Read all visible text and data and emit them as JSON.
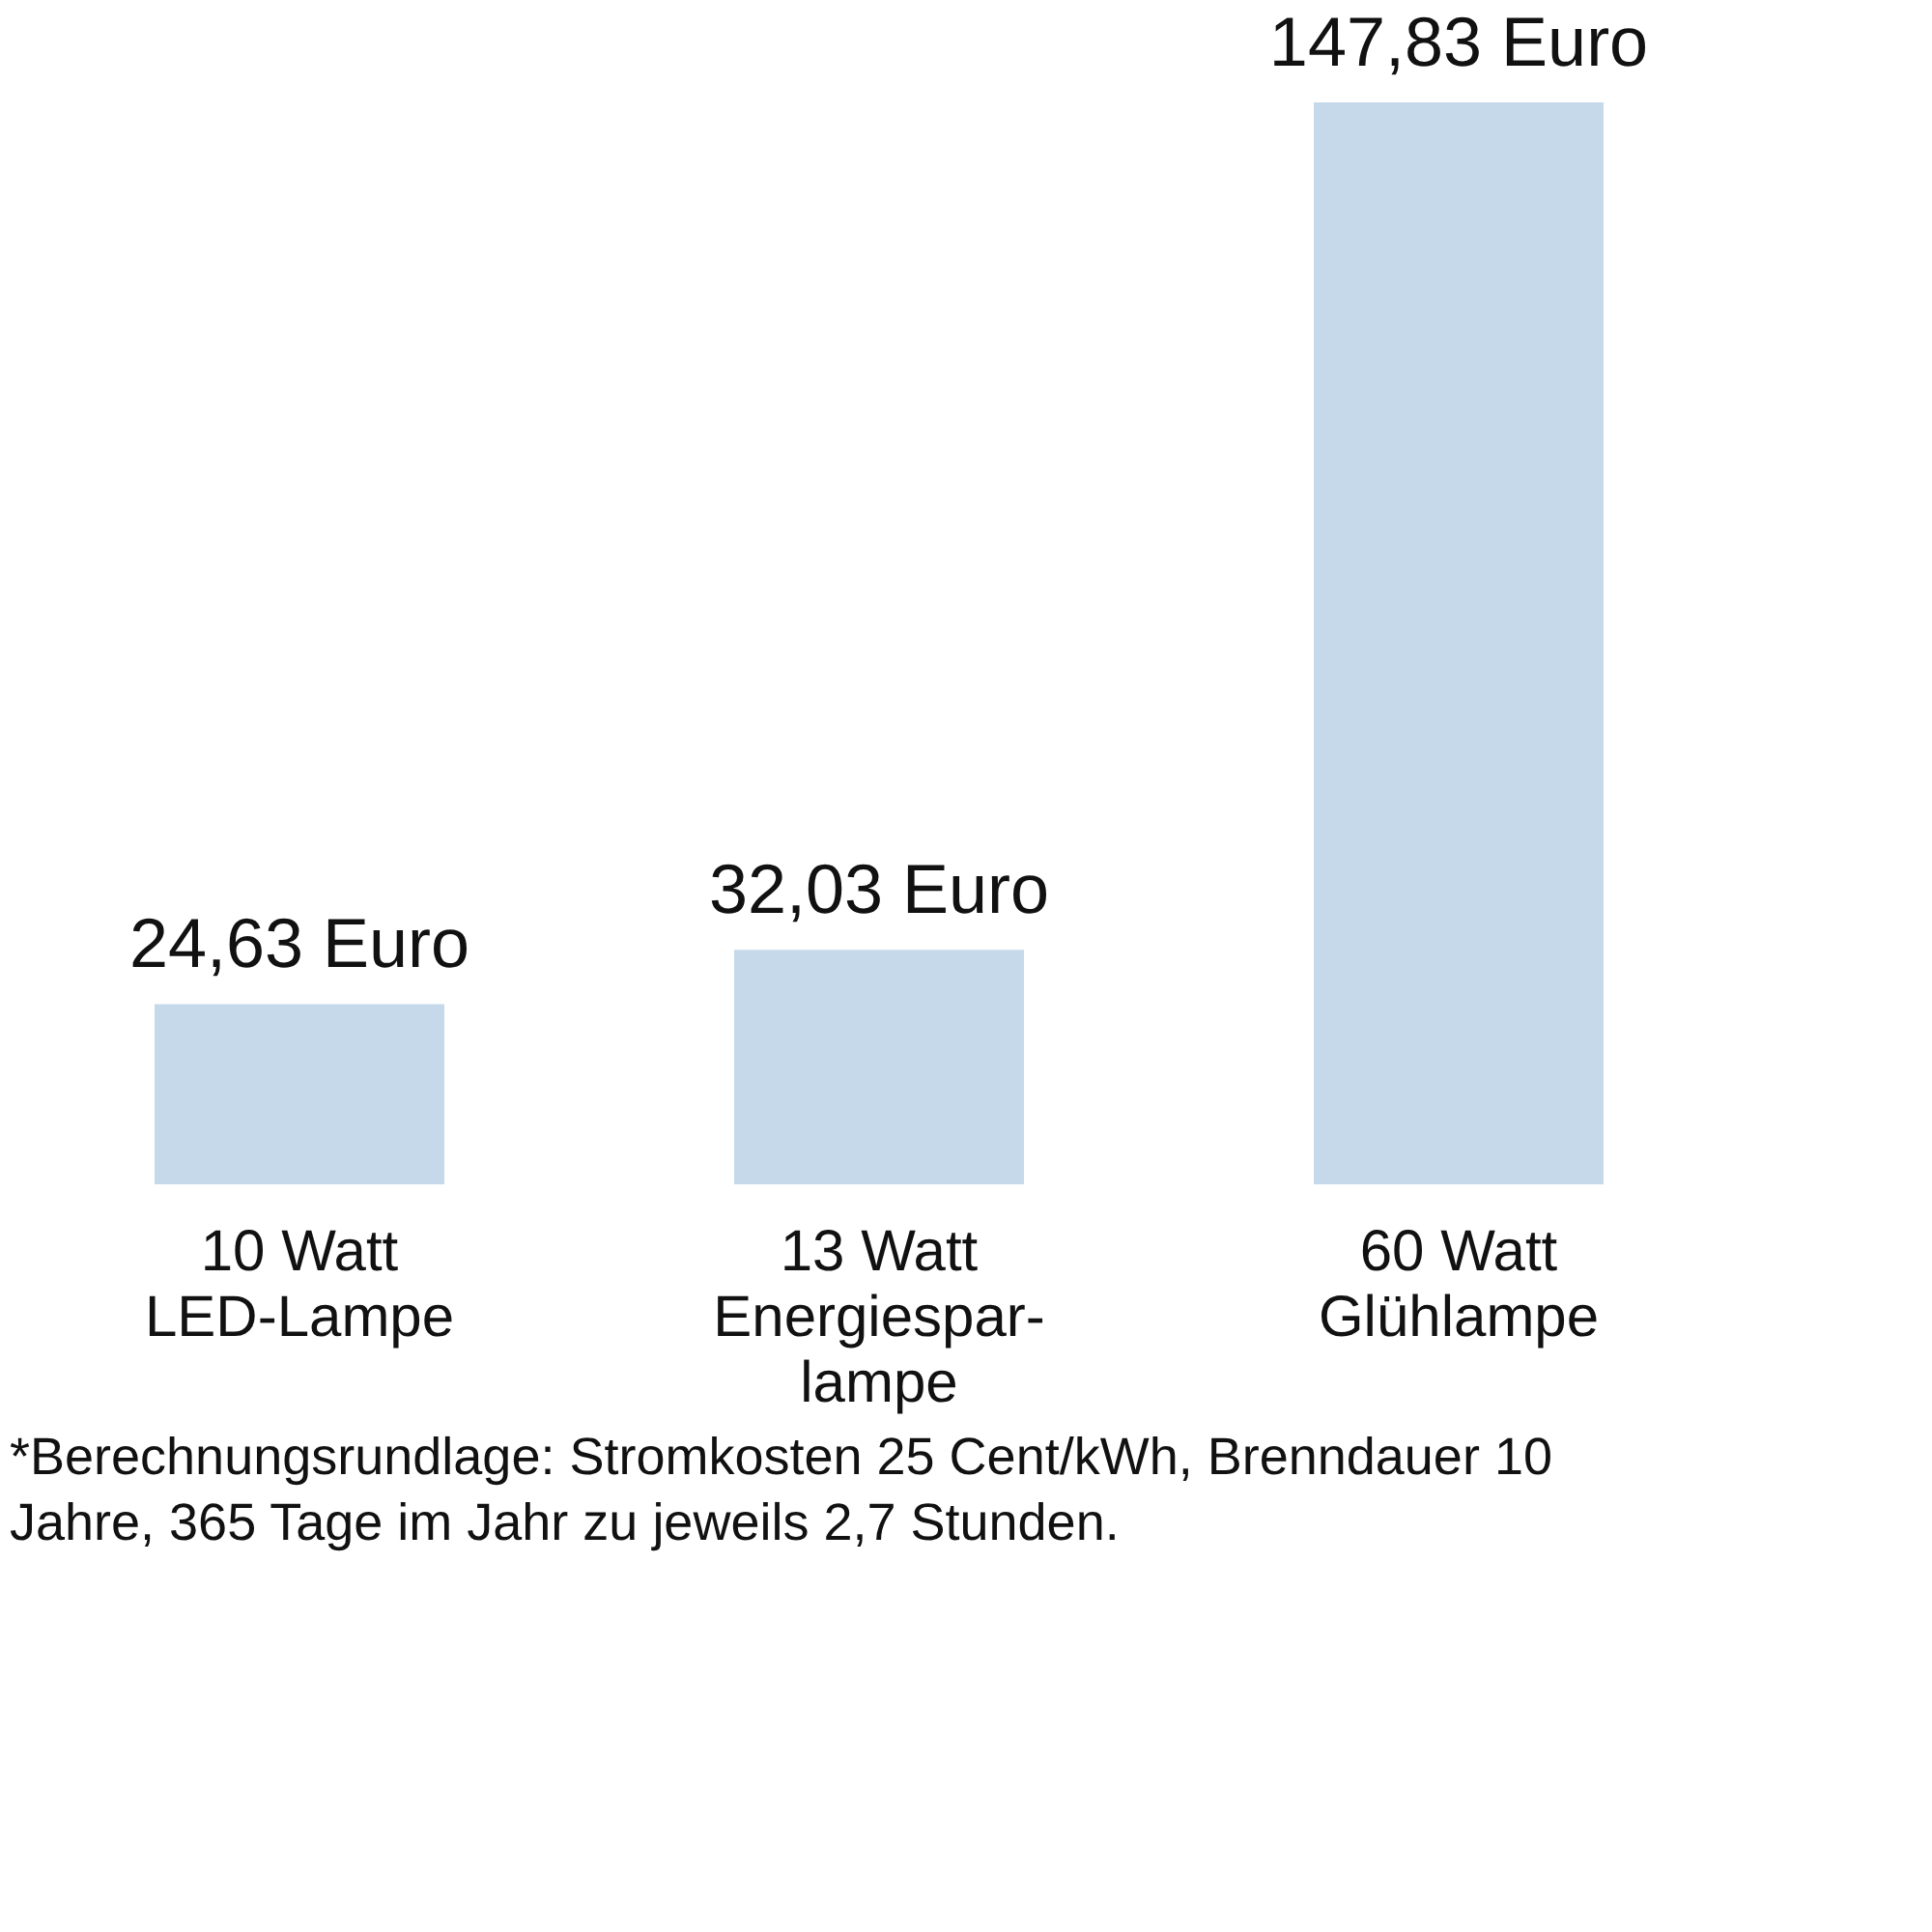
{
  "chart_data": {
    "type": "bar",
    "categories": [
      "10 Watt\nLED-Lampe",
      "13 Watt\nEnergiespar-\nlampe",
      "60 Watt\nGlühlampe"
    ],
    "values": [
      24.63,
      32.03,
      147.83
    ],
    "value_labels": [
      "24,63 Euro",
      "32,03 Euro",
      "147,83 Euro"
    ],
    "color": "#c5d9ea",
    "annotations": [
      "*Berechnungsrundlage: Stromkosten 25 Cent/kWh, Brenndauer 10 Jahre, 365 Tage im Jahr zu jeweils 2,7 Stunden."
    ]
  }
}
